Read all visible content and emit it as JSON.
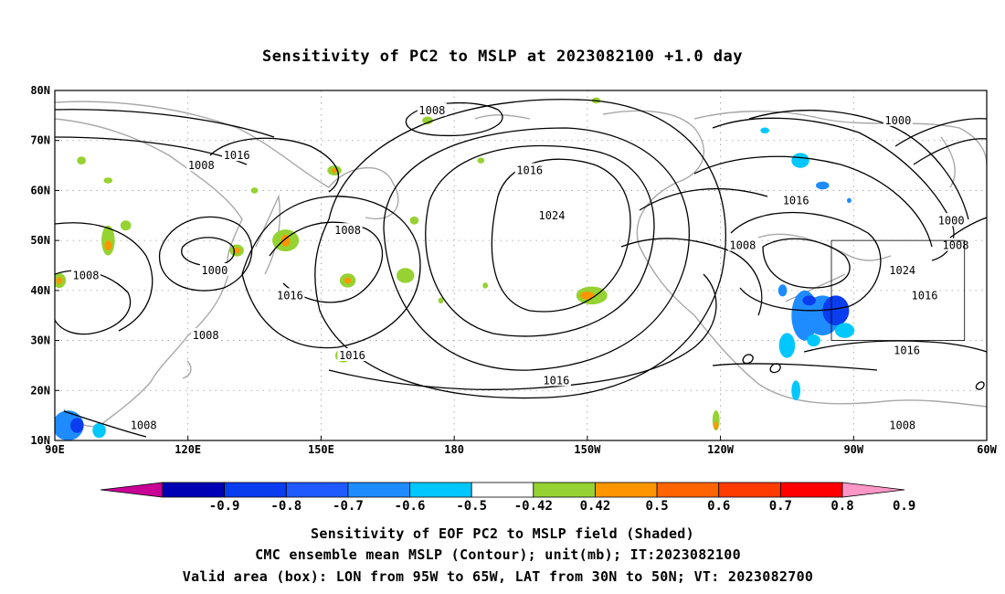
{
  "chart_data": {
    "type": "map",
    "title": "Sensitivity of PC2 to MSLP at 2023082100 +1.0 day",
    "projection": "cylindrical-equidistant",
    "lon_range": [
      90,
      300
    ],
    "lat_range": [
      10,
      80
    ],
    "grid": "dotted",
    "x_ticks": [
      {
        "lon": 90,
        "label": "90E"
      },
      {
        "lon": 120,
        "label": "120E"
      },
      {
        "lon": 150,
        "label": "150E"
      },
      {
        "lon": 180,
        "label": "180"
      },
      {
        "lon": 210,
        "label": "150W"
      },
      {
        "lon": 240,
        "label": "120W"
      },
      {
        "lon": 270,
        "label": "90W"
      },
      {
        "lon": 300,
        "label": "60W"
      }
    ],
    "y_ticks": [
      {
        "lat": 80,
        "label": "80N"
      },
      {
        "lat": 70,
        "label": "70N"
      },
      {
        "lat": 60,
        "label": "60N"
      },
      {
        "lat": 50,
        "label": "50N"
      },
      {
        "lat": 40,
        "label": "40N"
      },
      {
        "lat": 30,
        "label": "30N"
      },
      {
        "lat": 20,
        "label": "20N"
      },
      {
        "lat": 10,
        "label": "10N"
      }
    ],
    "contour_labels": [
      {
        "text": "1008",
        "lon": 175,
        "lat": 76
      },
      {
        "text": "1016",
        "lon": 131,
        "lat": 67
      },
      {
        "text": "1008",
        "lon": 123,
        "lat": 65
      },
      {
        "text": "1016",
        "lon": 197,
        "lat": 64
      },
      {
        "text": "1000",
        "lon": 280,
        "lat": 74
      },
      {
        "text": "1016",
        "lon": 257,
        "lat": 58
      },
      {
        "text": "1024",
        "lon": 202,
        "lat": 55
      },
      {
        "text": "1008",
        "lon": 156,
        "lat": 52
      },
      {
        "text": "1000",
        "lon": 126,
        "lat": 44
      },
      {
        "text": "1008",
        "lon": 97,
        "lat": 43
      },
      {
        "text": "1016",
        "lon": 143,
        "lat": 39
      },
      {
        "text": "1008",
        "lon": 124,
        "lat": 31
      },
      {
        "text": "1016",
        "lon": 157,
        "lat": 27
      },
      {
        "text": "1016",
        "lon": 203,
        "lat": 22
      },
      {
        "text": "1008",
        "lon": 110,
        "lat": 13
      },
      {
        "text": "1008",
        "lon": 245,
        "lat": 49
      },
      {
        "text": "1024",
        "lon": 281,
        "lat": 44
      },
      {
        "text": "1016",
        "lon": 286,
        "lat": 39
      },
      {
        "text": "1016",
        "lon": 282,
        "lat": 28
      },
      {
        "text": "1000",
        "lon": 292,
        "lat": 54
      },
      {
        "text": "1008",
        "lon": 293,
        "lat": 49
      },
      {
        "text": "1008",
        "lon": 281,
        "lat": 13
      }
    ],
    "sensitivity_patches": [
      {
        "lon": 263,
        "lat": 35,
        "rx": 4.0,
        "ry": 4.0,
        "color": "#1e8cff"
      },
      {
        "lon": 266,
        "lat": 36,
        "rx": 3.0,
        "ry": 3.0,
        "color": "#0a3cf0"
      },
      {
        "lon": 259,
        "lat": 35,
        "rx": 3.0,
        "ry": 5.0,
        "color": "#1e8cff"
      },
      {
        "lon": 260,
        "lat": 38,
        "rx": 1.5,
        "ry": 1.0,
        "color": "#0a3cf0"
      },
      {
        "lon": 255,
        "lat": 29,
        "rx": 1.8,
        "ry": 2.5,
        "color": "#00c8ff"
      },
      {
        "lon": 261,
        "lat": 30,
        "rx": 1.5,
        "ry": 1.2,
        "color": "#00c8ff"
      },
      {
        "lon": 268,
        "lat": 32,
        "rx": 2.2,
        "ry": 1.5,
        "color": "#00c8ff"
      },
      {
        "lon": 257,
        "lat": 20,
        "rx": 1.0,
        "ry": 2.0,
        "color": "#00c8ff"
      },
      {
        "lon": 254,
        "lat": 40,
        "rx": 1.0,
        "ry": 1.2,
        "color": "#1e8cff"
      },
      {
        "lon": 258,
        "lat": 66,
        "rx": 2.0,
        "ry": 1.5,
        "color": "#00c8ff"
      },
      {
        "lon": 263,
        "lat": 61,
        "rx": 1.5,
        "ry": 0.8,
        "color": "#1e8cff"
      },
      {
        "lon": 250,
        "lat": 72,
        "rx": 1.0,
        "ry": 0.6,
        "color": "#00c8ff"
      },
      {
        "lon": 269,
        "lat": 58,
        "rx": 0.5,
        "ry": 0.5,
        "color": "#1e8cff"
      },
      {
        "lon": 93,
        "lat": 13,
        "rx": 3.5,
        "ry": 3.0,
        "color": "#1e8cff"
      },
      {
        "lon": 95,
        "lat": 13,
        "rx": 1.5,
        "ry": 1.5,
        "color": "#0a3cf0"
      },
      {
        "lon": 100,
        "lat": 12,
        "rx": 1.5,
        "ry": 1.5,
        "color": "#00c8ff"
      },
      {
        "lon": 211,
        "lat": 39,
        "rx": 3.5,
        "ry": 1.8,
        "color": "#96d232"
      },
      {
        "lon": 210,
        "lat": 39,
        "rx": 1.6,
        "ry": 0.8,
        "color": "#ff9600"
      },
      {
        "lon": 155,
        "lat": 27,
        "rx": 1.8,
        "ry": 1.4,
        "color": "#96d232"
      },
      {
        "lon": 155,
        "lat": 27,
        "rx": 1.0,
        "ry": 0.8,
        "color": "#ff9600"
      },
      {
        "lon": 156,
        "lat": 42,
        "rx": 1.8,
        "ry": 1.4,
        "color": "#96d232"
      },
      {
        "lon": 156,
        "lat": 42,
        "rx": 0.8,
        "ry": 0.6,
        "color": "#ff9600"
      },
      {
        "lon": 142,
        "lat": 50,
        "rx": 3.0,
        "ry": 2.2,
        "color": "#96d232"
      },
      {
        "lon": 142,
        "lat": 50,
        "rx": 1.0,
        "ry": 1.2,
        "color": "#ff9600"
      },
      {
        "lon": 131,
        "lat": 48,
        "rx": 1.6,
        "ry": 1.2,
        "color": "#96d232"
      },
      {
        "lon": 131,
        "lat": 48,
        "rx": 0.8,
        "ry": 0.6,
        "color": "#ff9600"
      },
      {
        "lon": 102,
        "lat": 50,
        "rx": 1.5,
        "ry": 3.0,
        "color": "#96d232"
      },
      {
        "lon": 102,
        "lat": 49,
        "rx": 0.8,
        "ry": 1.0,
        "color": "#ff9600"
      },
      {
        "lon": 106,
        "lat": 53,
        "rx": 1.2,
        "ry": 1.0,
        "color": "#96d232"
      },
      {
        "lon": 91,
        "lat": 42,
        "rx": 1.5,
        "ry": 1.5,
        "color": "#96d232"
      },
      {
        "lon": 91,
        "lat": 42,
        "rx": 0.7,
        "ry": 0.7,
        "color": "#ff9600"
      },
      {
        "lon": 169,
        "lat": 43,
        "rx": 2.0,
        "ry": 1.5,
        "color": "#96d232"
      },
      {
        "lon": 153,
        "lat": 64,
        "rx": 1.6,
        "ry": 1.0,
        "color": "#96d232"
      },
      {
        "lon": 153,
        "lat": 64,
        "rx": 0.6,
        "ry": 0.5,
        "color": "#ff9600"
      },
      {
        "lon": 239,
        "lat": 14,
        "rx": 0.8,
        "ry": 2.0,
        "color": "#96d232"
      },
      {
        "lon": 239,
        "lat": 13,
        "rx": 0.5,
        "ry": 0.8,
        "color": "#ff9600"
      },
      {
        "lon": 174,
        "lat": 74,
        "rx": 1.2,
        "ry": 0.8,
        "color": "#96d232"
      },
      {
        "lon": 96,
        "lat": 66,
        "rx": 1.0,
        "ry": 0.8,
        "color": "#96d232"
      },
      {
        "lon": 102,
        "lat": 62,
        "rx": 1.0,
        "ry": 0.6,
        "color": "#96d232"
      },
      {
        "lon": 171,
        "lat": 54,
        "rx": 1.0,
        "ry": 0.8,
        "color": "#96d232"
      },
      {
        "lon": 135,
        "lat": 60,
        "rx": 0.8,
        "ry": 0.6,
        "color": "#96d232"
      },
      {
        "lon": 177,
        "lat": 38,
        "rx": 0.6,
        "ry": 0.6,
        "color": "#96d232"
      },
      {
        "lon": 187,
        "lat": 41,
        "rx": 0.6,
        "ry": 0.6,
        "color": "#96d232"
      },
      {
        "lon": 212,
        "lat": 78,
        "rx": 1.0,
        "ry": 0.6,
        "color": "#96d232"
      },
      {
        "lon": 186,
        "lat": 66,
        "rx": 0.8,
        "ry": 0.6,
        "color": "#96d232"
      }
    ],
    "valid_box": {
      "lon_min": 265,
      "lon_max": 295,
      "lat_min": 30,
      "lat_max": 50
    },
    "colorbar": {
      "colors": [
        "#c80096",
        "#0000b4",
        "#0a3cf0",
        "#1e5aff",
        "#1e8cff",
        "#00c8ff",
        "#ffffff",
        "#96d232",
        "#ff9600",
        "#ff6400",
        "#ff3c00",
        "#ff0000",
        "#ff96c8"
      ],
      "labels": [
        "-0.9",
        "-0.8",
        "-0.7",
        "-0.6",
        "-0.5",
        "-0.42",
        "0.42",
        "0.5",
        "0.6",
        "0.7",
        "0.8",
        "0.9"
      ]
    },
    "footer": [
      "Sensitivity of EOF PC2 to MSLP field (Shaded)",
      "CMC ensemble mean MSLP (Contour); unit(mb); IT:2023082100",
      "Valid area (box): LON from 95W to 65W, LAT from 30N to 50N; VT: 2023082700"
    ]
  }
}
